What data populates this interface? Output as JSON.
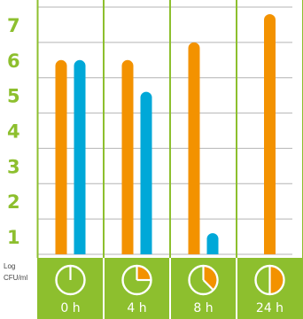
{
  "colors": {
    "series_a": "#f39200",
    "series_b": "#00a8d8",
    "tick_text": "#8dbf2e",
    "band": "#8dbf2e",
    "grid": "#b4b4b4",
    "clock_fill": "#f39200"
  },
  "y_unit_label": [
    "Log",
    "CFU/ml"
  ],
  "chart_data": {
    "type": "bar",
    "categories": [
      "0 h",
      "4 h",
      "8 h",
      "24 h"
    ],
    "category_icons": [
      "clock-0h-icon",
      "clock-4h-icon",
      "clock-8h-icon",
      "clock-24h-icon"
    ],
    "clock_fill_fraction": [
      0,
      0.25,
      0.375,
      0.5
    ],
    "series": [
      {
        "color": "#f39200",
        "values": [
          6.0,
          6.0,
          6.5,
          7.3
        ]
      },
      {
        "color": "#00a8d8",
        "values": [
          6.0,
          5.1,
          1.1,
          null
        ]
      }
    ],
    "yticks": [
      1,
      2,
      3,
      4,
      5,
      6,
      7
    ],
    "ylim": [
      0.5,
      7.5
    ],
    "grid": true,
    "legend": "none"
  }
}
